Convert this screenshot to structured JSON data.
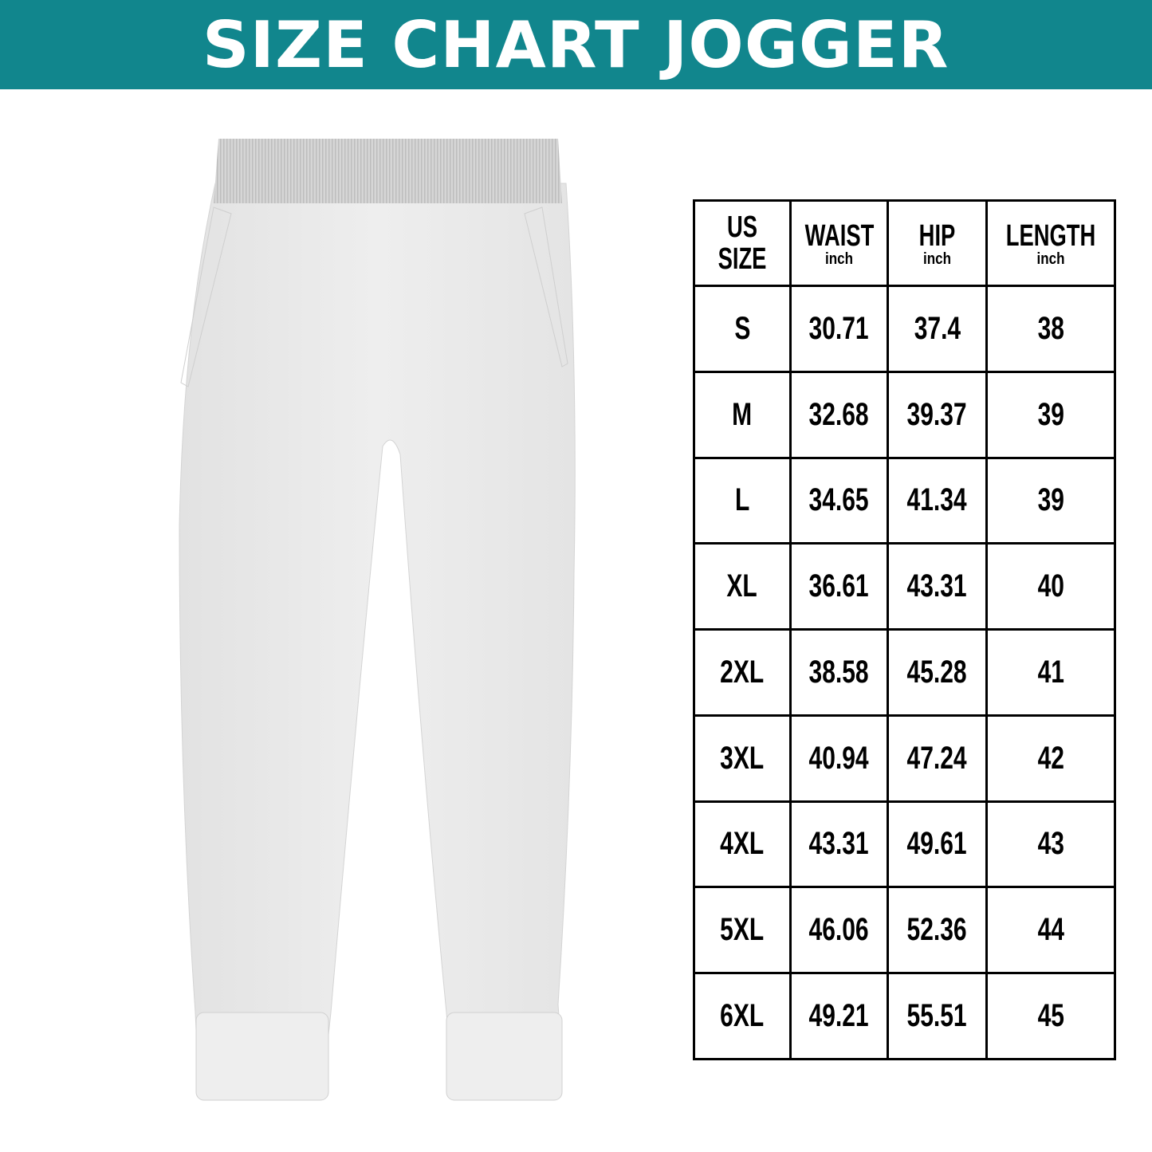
{
  "title": "SIZE CHART JOGGER",
  "colors": {
    "banner": "#11868d",
    "text": "#000000",
    "garment": "#e9e9e9"
  },
  "image": "white-jogger-pants",
  "table": {
    "headers": [
      {
        "label_line1": "US",
        "label_line2": "SIZE"
      },
      {
        "label": "WAIST",
        "unit": "inch"
      },
      {
        "label": "HIP",
        "unit": "inch"
      },
      {
        "label": "LENGTH",
        "unit": "inch"
      }
    ],
    "rows": [
      [
        "S",
        "30.71",
        "37.4",
        "38"
      ],
      [
        "M",
        "32.68",
        "39.37",
        "39"
      ],
      [
        "L",
        "34.65",
        "41.34",
        "39"
      ],
      [
        "XL",
        "36.61",
        "43.31",
        "40"
      ],
      [
        "2XL",
        "38.58",
        "45.28",
        "41"
      ],
      [
        "3XL",
        "40.94",
        "47.24",
        "42"
      ],
      [
        "4XL",
        "43.31",
        "49.61",
        "43"
      ],
      [
        "5XL",
        "46.06",
        "52.36",
        "44"
      ],
      [
        "6XL",
        "49.21",
        "55.51",
        "45"
      ]
    ]
  }
}
